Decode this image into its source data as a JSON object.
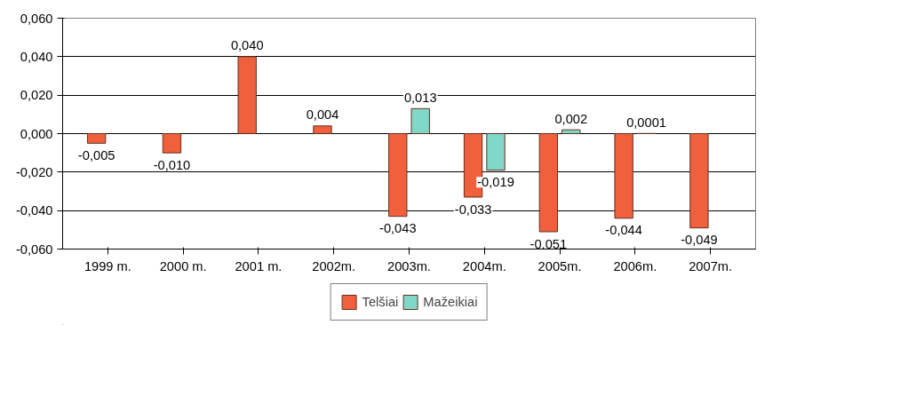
{
  "chart_data": {
    "type": "bar",
    "categories": [
      "1999 m.",
      "2000 m.",
      "2001 m.",
      "2002m.",
      "2003m.",
      "2004m.",
      "2005m.",
      "2006m.",
      "2007m."
    ],
    "series": [
      {
        "name": "Telšiai",
        "color": "#f0603c",
        "values": [
          -0.005,
          -0.01,
          0.04,
          0.004,
          -0.043,
          -0.033,
          -0.051,
          -0.044,
          -0.049
        ],
        "value_labels": [
          "-0,005",
          "-0,010",
          "0,040",
          "0,004",
          "-0,043",
          "-0,033",
          "-0,051",
          "-0,044",
          "-0,049"
        ]
      },
      {
        "name": "Mažeikiai",
        "color": "#80d8c8",
        "values": [
          null,
          null,
          null,
          null,
          0.013,
          -0.019,
          0.002,
          0.0001,
          null
        ],
        "value_labels": [
          null,
          null,
          null,
          null,
          "0,013",
          "-0,019",
          "0,002",
          "0,0001",
          null
        ]
      }
    ],
    "ylim": [
      -0.06,
      0.06
    ],
    "yticks": [
      {
        "value": -0.06,
        "label": "-0,060"
      },
      {
        "value": -0.04,
        "label": "-0,040"
      },
      {
        "value": -0.02,
        "label": "-0,020"
      },
      {
        "value": 0,
        "label": "0,000"
      },
      {
        "value": 0.02,
        "label": "0,020"
      },
      {
        "value": 0.04,
        "label": "0,040"
      },
      {
        "value": 0.06,
        "label": "0,060"
      }
    ],
    "grid": "y",
    "legend": "bottom"
  }
}
